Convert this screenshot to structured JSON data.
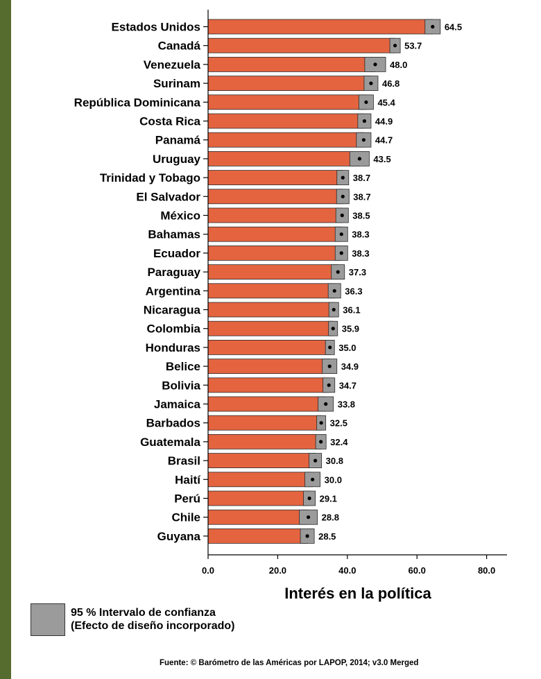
{
  "colors": {
    "bar": "#e46440",
    "ci": "#9b9b9b",
    "stripe": "#566b2e"
  },
  "chart_data": {
    "type": "bar",
    "orientation": "horizontal",
    "categories": [
      "Estados Unidos",
      "Canadá",
      "Venezuela",
      "Surinam",
      "República Dominicana",
      "Costa Rica",
      "Panamá",
      "Uruguay",
      "Trinidad y Tobago",
      "El Salvador",
      "México",
      "Bahamas",
      "Ecuador",
      "Paraguay",
      "Argentina",
      "Nicaragua",
      "Colombia",
      "Honduras",
      "Belice",
      "Bolivia",
      "Jamaica",
      "Barbados",
      "Guatemala",
      "Brasil",
      "Haití",
      "Perú",
      "Chile",
      "Guyana"
    ],
    "values": [
      64.5,
      53.7,
      48.0,
      46.8,
      45.4,
      44.9,
      44.7,
      43.5,
      38.7,
      38.7,
      38.5,
      38.3,
      38.3,
      37.3,
      36.3,
      36.1,
      35.9,
      35.0,
      34.9,
      34.7,
      33.8,
      32.5,
      32.4,
      30.8,
      30.0,
      29.1,
      28.8,
      28.5
    ],
    "value_labels": [
      "64.5",
      "53.7",
      "48.0",
      "46.8",
      "45.4",
      "44.9",
      "44.7",
      "43.5",
      "38.7",
      "38.7",
      "38.5",
      "38.3",
      "38.3",
      "37.3",
      "36.3",
      "36.1",
      "35.9",
      "35.0",
      "34.9",
      "34.7",
      "33.8",
      "32.5",
      "32.4",
      "30.8",
      "30.0",
      "29.1",
      "28.8",
      "28.5"
    ],
    "ci_low": [
      62.3,
      52.2,
      45.0,
      44.8,
      43.3,
      43.0,
      42.6,
      40.7,
      37.0,
      36.9,
      36.7,
      36.5,
      36.5,
      35.4,
      34.5,
      34.7,
      34.6,
      33.7,
      32.8,
      33.0,
      31.6,
      31.2,
      30.9,
      29.0,
      27.8,
      27.4,
      26.2,
      26.5
    ],
    "ci_high": [
      66.7,
      55.2,
      51.0,
      48.8,
      47.5,
      46.8,
      46.8,
      46.3,
      40.4,
      40.5,
      40.3,
      40.1,
      40.1,
      39.2,
      38.1,
      37.5,
      37.2,
      36.3,
      37.0,
      36.4,
      36.0,
      33.8,
      33.9,
      32.6,
      32.2,
      30.8,
      31.4,
      30.5
    ],
    "xlabel": "Interés en la política",
    "xlim": [
      0,
      86
    ],
    "xticks": [
      0,
      20,
      40,
      60,
      80
    ],
    "xtick_labels": [
      "0.0",
      "20.0",
      "40.0",
      "60.0",
      "80.0"
    ],
    "grid": false,
    "legend": {
      "line1": "95 % Intervalo de confianza",
      "line2": "(Efecto de diseño incorporado)"
    },
    "source": "Fuente: © Barómetro de las Américas por LAPOP, 2014; v3.0 Merged"
  }
}
